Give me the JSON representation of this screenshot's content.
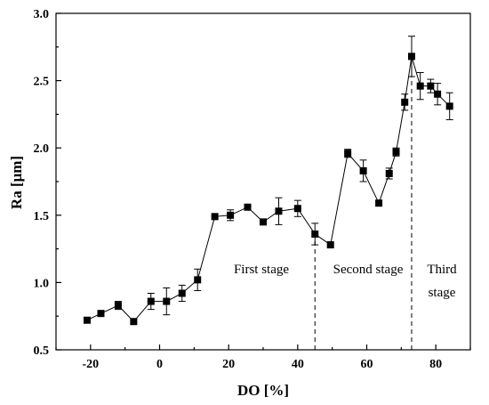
{
  "chart_data": {
    "type": "scatter",
    "xlabel": "DO [%]",
    "ylabel": "Ra [μm]",
    "xlim": [
      -30,
      90
    ],
    "ylim": [
      0.5,
      3.0
    ],
    "x_ticks": [
      -20,
      0,
      20,
      40,
      60,
      80
    ],
    "y_ticks": [
      0.5,
      1.0,
      1.5,
      2.0,
      2.5,
      3.0
    ],
    "x_tick_labels": [
      "-20",
      "0",
      "20",
      "40",
      "60",
      "80"
    ],
    "y_tick_labels": [
      "0.5",
      "1.0",
      "1.5",
      "2.0",
      "2.5",
      "3.0"
    ],
    "grid": false,
    "marker": "square",
    "connected": true,
    "points": [
      {
        "x": -21,
        "y": 0.72,
        "err": 0.0
      },
      {
        "x": -17,
        "y": 0.77,
        "err": 0.0
      },
      {
        "x": -12,
        "y": 0.83,
        "err": 0.03
      },
      {
        "x": -7.5,
        "y": 0.71,
        "err": 0.0
      },
      {
        "x": -2.5,
        "y": 0.86,
        "err": 0.06
      },
      {
        "x": 2,
        "y": 0.86,
        "err": 0.1
      },
      {
        "x": 6.5,
        "y": 0.92,
        "err": 0.06
      },
      {
        "x": 11,
        "y": 1.02,
        "err": 0.08
      },
      {
        "x": 16,
        "y": 1.49,
        "err": 0.0
      },
      {
        "x": 20.5,
        "y": 1.5,
        "err": 0.04
      },
      {
        "x": 25.5,
        "y": 1.56,
        "err": 0.0
      },
      {
        "x": 30,
        "y": 1.45,
        "err": 0.0
      },
      {
        "x": 34.5,
        "y": 1.53,
        "err": 0.1
      },
      {
        "x": 40,
        "y": 1.55,
        "err": 0.06
      },
      {
        "x": 45,
        "y": 1.36,
        "err": 0.08
      },
      {
        "x": 49.5,
        "y": 1.28,
        "err": 0.0
      },
      {
        "x": 54.5,
        "y": 1.96,
        "err": 0.03
      },
      {
        "x": 59,
        "y": 1.83,
        "err": 0.08
      },
      {
        "x": 63.5,
        "y": 1.59,
        "err": 0.0
      },
      {
        "x": 66.5,
        "y": 1.81,
        "err": 0.04
      },
      {
        "x": 68.5,
        "y": 1.97,
        "err": 0.03
      },
      {
        "x": 71,
        "y": 2.34,
        "err": 0.06
      },
      {
        "x": 73,
        "y": 2.68,
        "err": 0.15
      },
      {
        "x": 75.5,
        "y": 2.46,
        "err": 0.1
      },
      {
        "x": 78.5,
        "y": 2.46,
        "err": 0.05
      },
      {
        "x": 80.5,
        "y": 2.4,
        "err": 0.08
      },
      {
        "x": 84,
        "y": 2.31,
        "err": 0.1
      }
    ],
    "dividers": [
      45,
      73
    ],
    "annotations": [
      {
        "id": "first",
        "text": "First stage"
      },
      {
        "id": "second",
        "text": "Second stage"
      },
      {
        "id": "third_1",
        "text": "Third"
      },
      {
        "id": "third_2",
        "text": "stage"
      }
    ]
  }
}
